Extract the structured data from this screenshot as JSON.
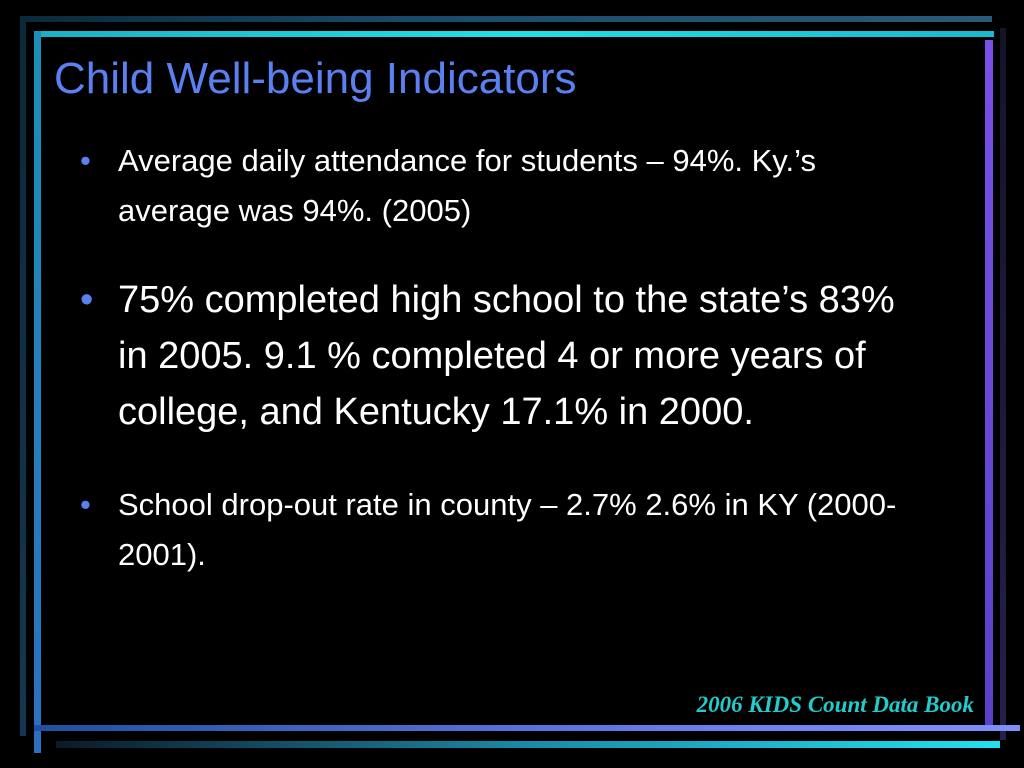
{
  "slide": {
    "title": "Child Well-being Indicators",
    "bullets": [
      "Average daily attendance for students – 94%. Ky.’s average was 94%. (2005)",
      "75% completed high school to the state’s 83% in 2005. 9.1 % completed 4 or more years of college, and Kentucky 17.1% in 2000.",
      "School drop-out rate in county – 2.7% 2.6% in KY (2000-2001)."
    ],
    "footer": "2006 KIDS Count Data Book"
  }
}
